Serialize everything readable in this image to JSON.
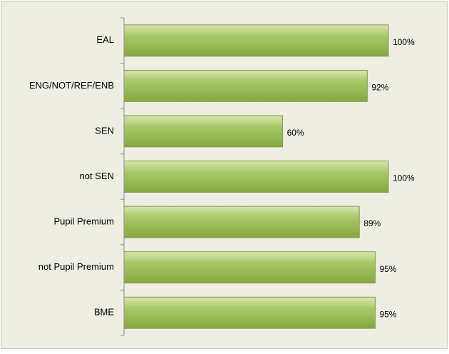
{
  "chart_data": {
    "type": "barh",
    "categories": [
      "EAL",
      "ENG/NOT/REF/ENB",
      "SEN",
      "not SEN",
      "Pupil Premium",
      "not Pupil Premium",
      "BME"
    ],
    "values": [
      100,
      92,
      60,
      100,
      89,
      95,
      95
    ],
    "value_labels": [
      "100%",
      "92%",
      "60%",
      "100%",
      "89%",
      "95%",
      "95%"
    ],
    "color": "#9bbb59",
    "xlim": [
      0,
      100
    ]
  }
}
